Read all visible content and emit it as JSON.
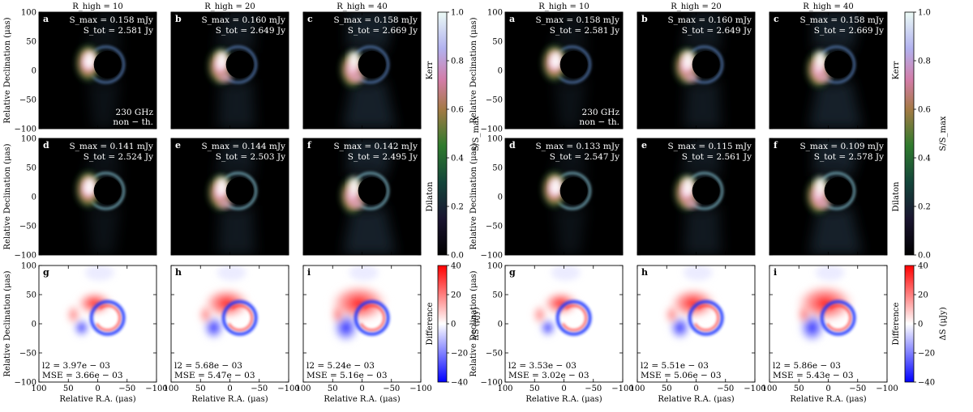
{
  "chart_data": {
    "type": "heatmap",
    "colormaps": {
      "intensity": {
        "label": "S/S_max",
        "range": [
          0.0,
          1.0
        ],
        "ticks": [
          0.0,
          0.2,
          0.4,
          0.6,
          0.8,
          1.0
        ]
      },
      "difference": {
        "label": "ΔS (μJy)",
        "range": [
          -40,
          40
        ],
        "ticks": [
          -40,
          -20,
          0,
          20,
          40
        ]
      }
    },
    "axes": {
      "xlabel": "Relative R.A. (μas)",
      "ylabel": "Relative Declination (μas)",
      "xlim": [
        100,
        -100
      ],
      "ylim": [
        -100,
        100
      ],
      "xticks": [
        "100",
        "50",
        "0",
        "−50",
        "−100"
      ],
      "yticks": [
        "100",
        "50",
        "0",
        "−50",
        "−100"
      ]
    },
    "column_titles": [
      "R_high = 10",
      "R_high = 20",
      "R_high = 40"
    ],
    "row_labels": [
      "Kerr",
      "Dilaton",
      "Difference"
    ],
    "corner_note": [
      "230 GHz",
      "non − th."
    ],
    "figures": [
      {
        "kerr": [
          {
            "label": "a",
            "smax": "S_max = 0.158 mJy",
            "stot": "S_tot = 2.581 Jy"
          },
          {
            "label": "b",
            "smax": "S_max = 0.160 mJy",
            "stot": "S_tot = 2.649 Jy"
          },
          {
            "label": "c",
            "smax": "S_max = 0.158 mJy",
            "stot": "S_tot = 2.669 Jy"
          }
        ],
        "dilaton": [
          {
            "label": "d",
            "smax": "S_max = 0.141 mJy",
            "stot": "S_tot = 2.524 Jy"
          },
          {
            "label": "e",
            "smax": "S_max = 0.144 mJy",
            "stot": "S_tot = 2.503 Jy"
          },
          {
            "label": "f",
            "smax": "S_max = 0.142 mJy",
            "stot": "S_tot = 2.495 Jy"
          }
        ],
        "difference": [
          {
            "label": "g",
            "l2": "l2 = 3.97e − 03",
            "mse": "MSE = 3.66e − 03"
          },
          {
            "label": "h",
            "l2": "l2 = 5.68e − 03",
            "mse": "MSE = 5.47e − 03"
          },
          {
            "label": "i",
            "l2": "l2 = 5.24e − 03",
            "mse": "MSE = 5.16e − 03"
          }
        ]
      },
      {
        "kerr": [
          {
            "label": "a",
            "smax": "S_max = 0.158 mJy",
            "stot": "S_tot = 2.581 Jy"
          },
          {
            "label": "b",
            "smax": "S_max = 0.160 mJy",
            "stot": "S_tot = 2.649 Jy"
          },
          {
            "label": "c",
            "smax": "S_max = 0.158 mJy",
            "stot": "S_tot = 2.669 Jy"
          }
        ],
        "dilaton": [
          {
            "label": "d",
            "smax": "S_max = 0.133 mJy",
            "stot": "S_tot = 2.547 Jy"
          },
          {
            "label": "e",
            "smax": "S_max = 0.115 mJy",
            "stot": "S_tot = 2.561 Jy"
          },
          {
            "label": "f",
            "smax": "S_max = 0.109 mJy",
            "stot": "S_tot = 2.578 Jy"
          }
        ],
        "difference": [
          {
            "label": "g",
            "l2": "l2 = 3.53e − 03",
            "mse": "MSE = 3.02e − 03"
          },
          {
            "label": "h",
            "l2": "l2 = 5.51e − 03",
            "mse": "MSE = 5.06e − 03"
          },
          {
            "label": "i",
            "l2": "l2 = 5.86e − 03",
            "mse": "MSE = 5.43e − 03"
          }
        ]
      }
    ]
  }
}
